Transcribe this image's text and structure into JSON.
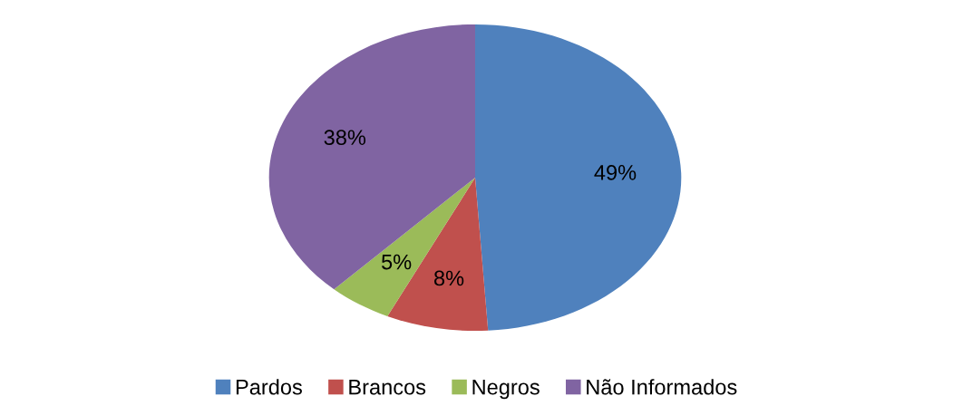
{
  "chart_data": {
    "type": "pie",
    "categories": [
      "Pardos",
      "Brancos",
      "Negros",
      "Não Informados"
    ],
    "values": [
      49,
      8,
      5,
      38
    ],
    "colors": [
      "#4f81bd",
      "#c0504d",
      "#9bbb59",
      "#8064a2"
    ],
    "value_labels": [
      "49%",
      "8%",
      "5%",
      "38%"
    ],
    "legend": "bottom"
  }
}
